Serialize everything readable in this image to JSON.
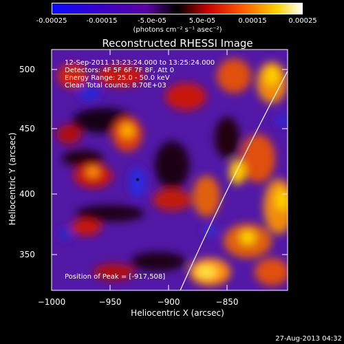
{
  "colorbar": {
    "tick_labels": [
      "-0.00025",
      "-0.00015",
      "-5.0e-05",
      "5.0e-05",
      "0.00015",
      "0.00025"
    ],
    "unit_label": "(photons cm⁻² s⁻¹ asec⁻²)"
  },
  "plot": {
    "title": "Reconstructed RHESSI Image",
    "xlabel": "Heliocentric X (arcsec)",
    "ylabel": "Heliocentric Y (arcsec)",
    "x_ticks": [
      "−1000",
      "−950",
      "−900",
      "−850"
    ],
    "y_ticks": [
      "500",
      "450",
      "400",
      "350"
    ],
    "info_lines": [
      "12-Sep-2011 13:23:24.000 to 13:25:24.000",
      "Detectors: 4F 5F 6F 7F 8F, Att 0",
      "Energy Range: 25.0 - 50.0 keV",
      "Clean     Total counts: 8.70E+03"
    ],
    "peak_label": "Position of Peak = [-917,508]"
  },
  "footer": {
    "date": "27-Aug-2013 04:32"
  }
}
